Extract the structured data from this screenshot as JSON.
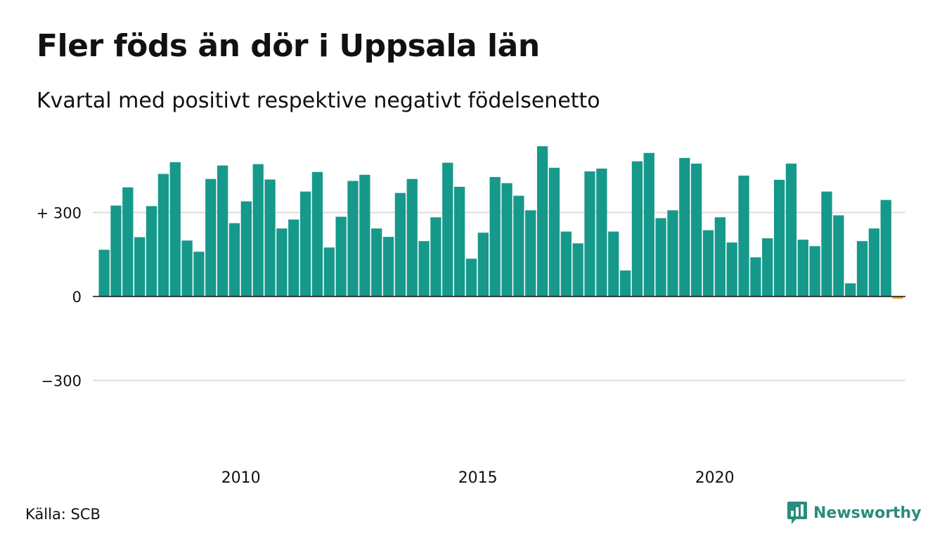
{
  "title": "Fler föds än dör i Uppsala län",
  "subtitle": "Kvartal med positivt respektive negativt födelsenetto",
  "source": "Källa: SCB",
  "brand": {
    "name": "Newsworthy",
    "logo_icon": "newsworthy-bar-chart-logo-icon"
  },
  "colors": {
    "positive": "#16998a",
    "negative": "#e8a319",
    "gridline": "#dddddd",
    "zero_line": "#111111",
    "brand": "#2a8c7c"
  },
  "chart_data": {
    "type": "bar",
    "x_start": "2007 Q1",
    "x_ticks": [
      {
        "label": "2010",
        "index": 12
      },
      {
        "label": "2015",
        "index": 32
      },
      {
        "label": "2020",
        "index": 52
      }
    ],
    "y_ticks": [
      {
        "value": 300,
        "label": "+ 300"
      },
      {
        "value": 0,
        "label": "0"
      },
      {
        "value": -300,
        "label": "−300"
      }
    ],
    "ylim": [
      -500,
      560
    ],
    "grid": true,
    "values": [
      167,
      325,
      390,
      212,
      323,
      438,
      480,
      200,
      160,
      420,
      468,
      262,
      340,
      473,
      418,
      243,
      275,
      375,
      445,
      175,
      285,
      413,
      435,
      243,
      213,
      370,
      420,
      198,
      283,
      478,
      392,
      135,
      228,
      427,
      405,
      360,
      308,
      537,
      460,
      232,
      190,
      447,
      457,
      232,
      93,
      483,
      513,
      280,
      308,
      495,
      475,
      237,
      283,
      193,
      432,
      140,
      208,
      417,
      475,
      203,
      180,
      375,
      290,
      47,
      198,
      243,
      345,
      -8
    ]
  }
}
